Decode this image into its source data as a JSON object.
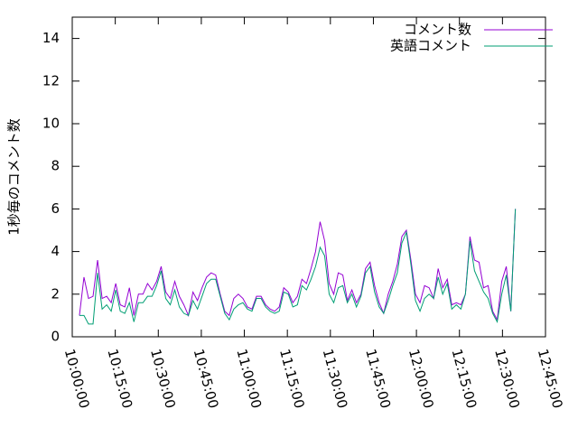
{
  "chart_data": {
    "type": "line",
    "y_label": "1秒毎のコメント数",
    "x": [
      "10:02:30",
      "10:04:05",
      "10:05:40",
      "10:07:15",
      "10:08:50",
      "10:10:25",
      "10:12:00",
      "10:13:35",
      "10:15:10",
      "10:16:45",
      "10:18:20",
      "10:19:55",
      "10:21:30",
      "10:23:05",
      "10:24:40",
      "10:26:15",
      "10:27:50",
      "10:29:25",
      "10:31:00",
      "10:32:35",
      "10:34:10",
      "10:35:45",
      "10:37:20",
      "10:38:55",
      "10:40:30",
      "10:42:05",
      "10:43:40",
      "10:45:15",
      "10:46:50",
      "10:48:25",
      "10:50:00",
      "10:51:35",
      "10:53:10",
      "10:54:45",
      "10:56:20",
      "10:57:55",
      "10:59:30",
      "11:01:05",
      "11:02:40",
      "11:04:15",
      "11:05:50",
      "11:07:25",
      "11:09:00",
      "11:10:35",
      "11:12:10",
      "11:13:45",
      "11:15:20",
      "11:16:55",
      "11:18:30",
      "11:20:05",
      "11:21:40",
      "11:23:15",
      "11:24:50",
      "11:26:25",
      "11:28:00",
      "11:29:35",
      "11:31:10",
      "11:32:45",
      "11:34:20",
      "11:35:55",
      "11:37:30",
      "11:39:05",
      "11:40:40",
      "11:42:15",
      "11:43:50",
      "11:45:25",
      "11:47:00",
      "11:48:35",
      "11:50:10",
      "11:51:45",
      "11:53:20",
      "11:54:55",
      "11:56:30",
      "11:58:05",
      "11:59:40",
      "12:01:15",
      "12:02:50",
      "12:04:25",
      "12:06:00",
      "12:07:35",
      "12:09:10",
      "12:10:45",
      "12:12:20",
      "12:13:55",
      "12:15:30",
      "12:17:05",
      "12:18:40",
      "12:20:15",
      "12:21:50",
      "12:23:25",
      "12:25:00",
      "12:26:35",
      "12:28:10",
      "12:29:45",
      "12:31:20",
      "12:32:55",
      "12:34:30"
    ],
    "series": [
      {
        "name": "コメント数",
        "color": "#9400d3",
        "values": [
          1.0,
          2.8,
          1.8,
          1.9,
          3.6,
          1.8,
          1.9,
          1.6,
          2.5,
          1.5,
          1.4,
          2.3,
          1.0,
          2.0,
          2.0,
          2.5,
          2.2,
          2.6,
          3.3,
          2.1,
          1.8,
          2.6,
          1.9,
          1.5,
          1.0,
          2.1,
          1.7,
          2.3,
          2.8,
          3.0,
          2.9,
          2.0,
          1.2,
          1.0,
          1.8,
          2.0,
          1.8,
          1.4,
          1.3,
          1.9,
          1.9,
          1.5,
          1.3,
          1.2,
          1.4,
          2.3,
          2.1,
          1.6,
          1.9,
          2.7,
          2.5,
          3.2,
          4.0,
          5.4,
          4.5,
          2.5,
          2.0,
          3.0,
          2.9,
          1.7,
          2.2,
          1.6,
          2.0,
          3.2,
          3.5,
          2.4,
          1.6,
          1.1,
          2.0,
          2.6,
          3.4,
          4.7,
          5.0,
          3.6,
          2.0,
          1.6,
          2.4,
          2.3,
          1.8,
          3.2,
          2.3,
          2.7,
          1.5,
          1.6,
          1.5,
          2.0,
          4.7,
          3.6,
          3.5,
          2.3,
          2.4,
          1.2,
          0.8,
          2.6,
          3.3,
          1.2,
          6.0
        ]
      },
      {
        "name": "英語コメント",
        "color": "#009e73",
        "values": [
          1.0,
          1.0,
          0.6,
          0.6,
          3.0,
          1.3,
          1.5,
          1.2,
          2.2,
          1.2,
          1.1,
          1.6,
          0.7,
          1.6,
          1.6,
          1.9,
          1.9,
          2.4,
          3.1,
          1.8,
          1.5,
          2.2,
          1.4,
          1.1,
          1.0,
          1.7,
          1.3,
          1.9,
          2.5,
          2.7,
          2.7,
          1.9,
          1.1,
          0.8,
          1.3,
          1.5,
          1.6,
          1.3,
          1.2,
          1.8,
          1.8,
          1.4,
          1.2,
          1.1,
          1.2,
          2.1,
          2.0,
          1.4,
          1.5,
          2.4,
          2.2,
          2.7,
          3.3,
          4.2,
          3.8,
          2.0,
          1.6,
          2.3,
          2.4,
          1.6,
          2.0,
          1.4,
          1.9,
          3.0,
          3.3,
          2.1,
          1.4,
          1.1,
          1.7,
          2.4,
          3.0,
          4.4,
          4.9,
          3.4,
          1.7,
          1.2,
          1.8,
          2.0,
          1.8,
          2.8,
          2.0,
          2.5,
          1.3,
          1.5,
          1.3,
          2.0,
          4.5,
          3.1,
          2.6,
          2.1,
          1.8,
          1.1,
          0.7,
          2.0,
          2.9,
          1.2,
          6.0
        ]
      }
    ],
    "xlim": [
      "10:00:00",
      "12:45:00"
    ],
    "xticks": [
      "10:00:00",
      "10:15:00",
      "10:30:00",
      "10:45:00",
      "11:00:00",
      "11:15:00",
      "11:30:00",
      "11:45:00",
      "12:00:00",
      "12:15:00",
      "12:30:00",
      "12:45:00"
    ],
    "ylim": [
      0,
      15
    ],
    "yticks": [
      0,
      2,
      4,
      6,
      8,
      10,
      12,
      14
    ],
    "legend": "top-right"
  }
}
